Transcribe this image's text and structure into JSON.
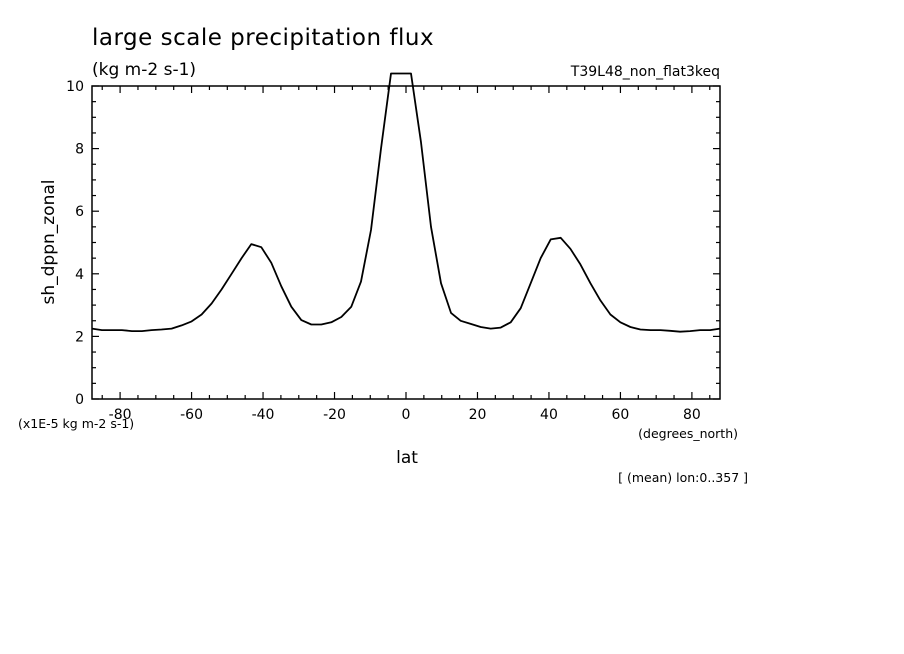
{
  "chart_data": {
    "type": "line",
    "title": "large scale precipitation flux",
    "subtitle": "(kg m-2 s-1)",
    "dataset_label": "T39L48_non_flat3keq",
    "xlabel": "lat",
    "xunits": "(degrees_north)",
    "ylabel": "sh_dppn_zonal",
    "yscale_note": "(x1E-5 kg m-2 s-1)",
    "footnote": "[ (mean) lon:0..357 ]",
    "xlim": [
      -87.86,
      87.86
    ],
    "ylim": [
      0,
      10
    ],
    "x_ticks": [
      "-80",
      "-60",
      "-40",
      "-20",
      "0",
      "20",
      "40",
      "60",
      "80"
    ],
    "y_ticks": [
      "0",
      "2",
      "4",
      "6",
      "8",
      "10"
    ],
    "grid": false,
    "line_color": "#000000",
    "series": [
      {
        "x": [
          -87.86,
          -85.1,
          -82.3,
          -79.5,
          -76.7,
          -73.9,
          -71.2,
          -68.4,
          -65.6,
          -62.8,
          -60.0,
          -57.2,
          -54.4,
          -51.6,
          -48.8,
          -46.0,
          -43.3,
          -40.5,
          -37.7,
          -34.9,
          -32.1,
          -29.3,
          -26.5,
          -23.7,
          -20.9,
          -18.1,
          -15.3,
          -12.6,
          -9.8,
          -7.0,
          -4.2,
          -1.4,
          1.4,
          4.2,
          7.0,
          9.8,
          12.6,
          15.3,
          18.1,
          20.9,
          23.7,
          26.5,
          29.3,
          32.1,
          34.9,
          37.7,
          40.5,
          43.3,
          46.0,
          48.8,
          51.6,
          54.4,
          57.2,
          60.0,
          62.8,
          65.6,
          68.4,
          71.2,
          73.9,
          76.7,
          79.5,
          82.3,
          85.1,
          87.86
        ],
        "values": [
          2.25,
          2.2,
          2.2,
          2.2,
          2.17,
          2.17,
          2.2,
          2.22,
          2.25,
          2.35,
          2.48,
          2.7,
          3.05,
          3.5,
          4.0,
          4.5,
          4.95,
          4.85,
          4.35,
          3.6,
          2.95,
          2.52,
          2.38,
          2.38,
          2.45,
          2.62,
          2.95,
          3.75,
          5.4,
          8.0,
          10.4,
          10.4,
          10.4,
          8.2,
          5.5,
          3.7,
          2.75,
          2.5,
          2.4,
          2.3,
          2.25,
          2.28,
          2.45,
          2.9,
          3.7,
          4.5,
          5.1,
          5.15,
          4.8,
          4.3,
          3.7,
          3.15,
          2.7,
          2.45,
          2.3,
          2.22,
          2.2,
          2.2,
          2.18,
          2.15,
          2.17,
          2.2,
          2.2,
          2.25
        ]
      }
    ]
  }
}
